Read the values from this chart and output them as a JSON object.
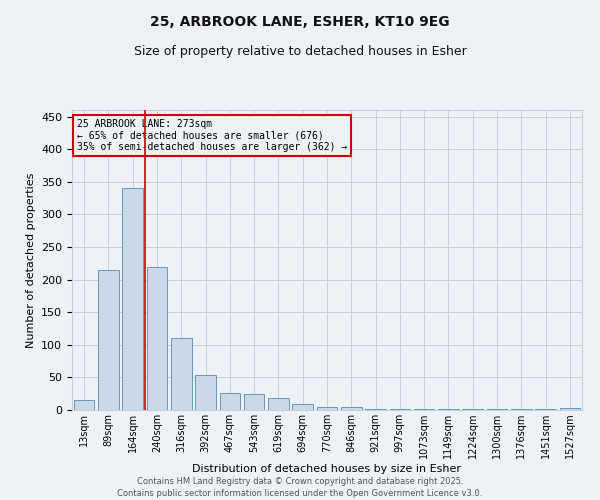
{
  "title_line1": "25, ARBROOK LANE, ESHER, KT10 9EG",
  "title_line2": "Size of property relative to detached houses in Esher",
  "xlabel": "Distribution of detached houses by size in Esher",
  "ylabel": "Number of detached properties",
  "bar_labels": [
    "13sqm",
    "89sqm",
    "164sqm",
    "240sqm",
    "316sqm",
    "392sqm",
    "467sqm",
    "543sqm",
    "619sqm",
    "694sqm",
    "770sqm",
    "846sqm",
    "921sqm",
    "997sqm",
    "1073sqm",
    "1149sqm",
    "1224sqm",
    "1300sqm",
    "1376sqm",
    "1451sqm",
    "1527sqm"
  ],
  "bar_values": [
    16,
    215,
    340,
    220,
    110,
    53,
    26,
    25,
    18,
    9,
    5,
    4,
    2,
    2,
    2,
    1,
    1,
    1,
    1,
    1,
    3
  ],
  "bar_color": "#c9d9e8",
  "bar_edge_color": "#6699bb",
  "ylim": [
    0,
    460
  ],
  "yticks": [
    0,
    50,
    100,
    150,
    200,
    250,
    300,
    350,
    400,
    450
  ],
  "vline_x": 2.5,
  "annotation_line1": "25 ARBROOK LANE: 273sqm",
  "annotation_line2": "← 65% of detached houses are smaller (676)",
  "annotation_line3": "35% of semi-detached houses are larger (362) →",
  "annotation_box_color": "#cc0000",
  "vline_color": "#cc0000",
  "footer_line1": "Contains HM Land Registry data © Crown copyright and database right 2025.",
  "footer_line2": "Contains public sector information licensed under the Open Government Licence v3.0.",
  "bg_color": "#eef2f7",
  "grid_color": "#c5cfe0"
}
